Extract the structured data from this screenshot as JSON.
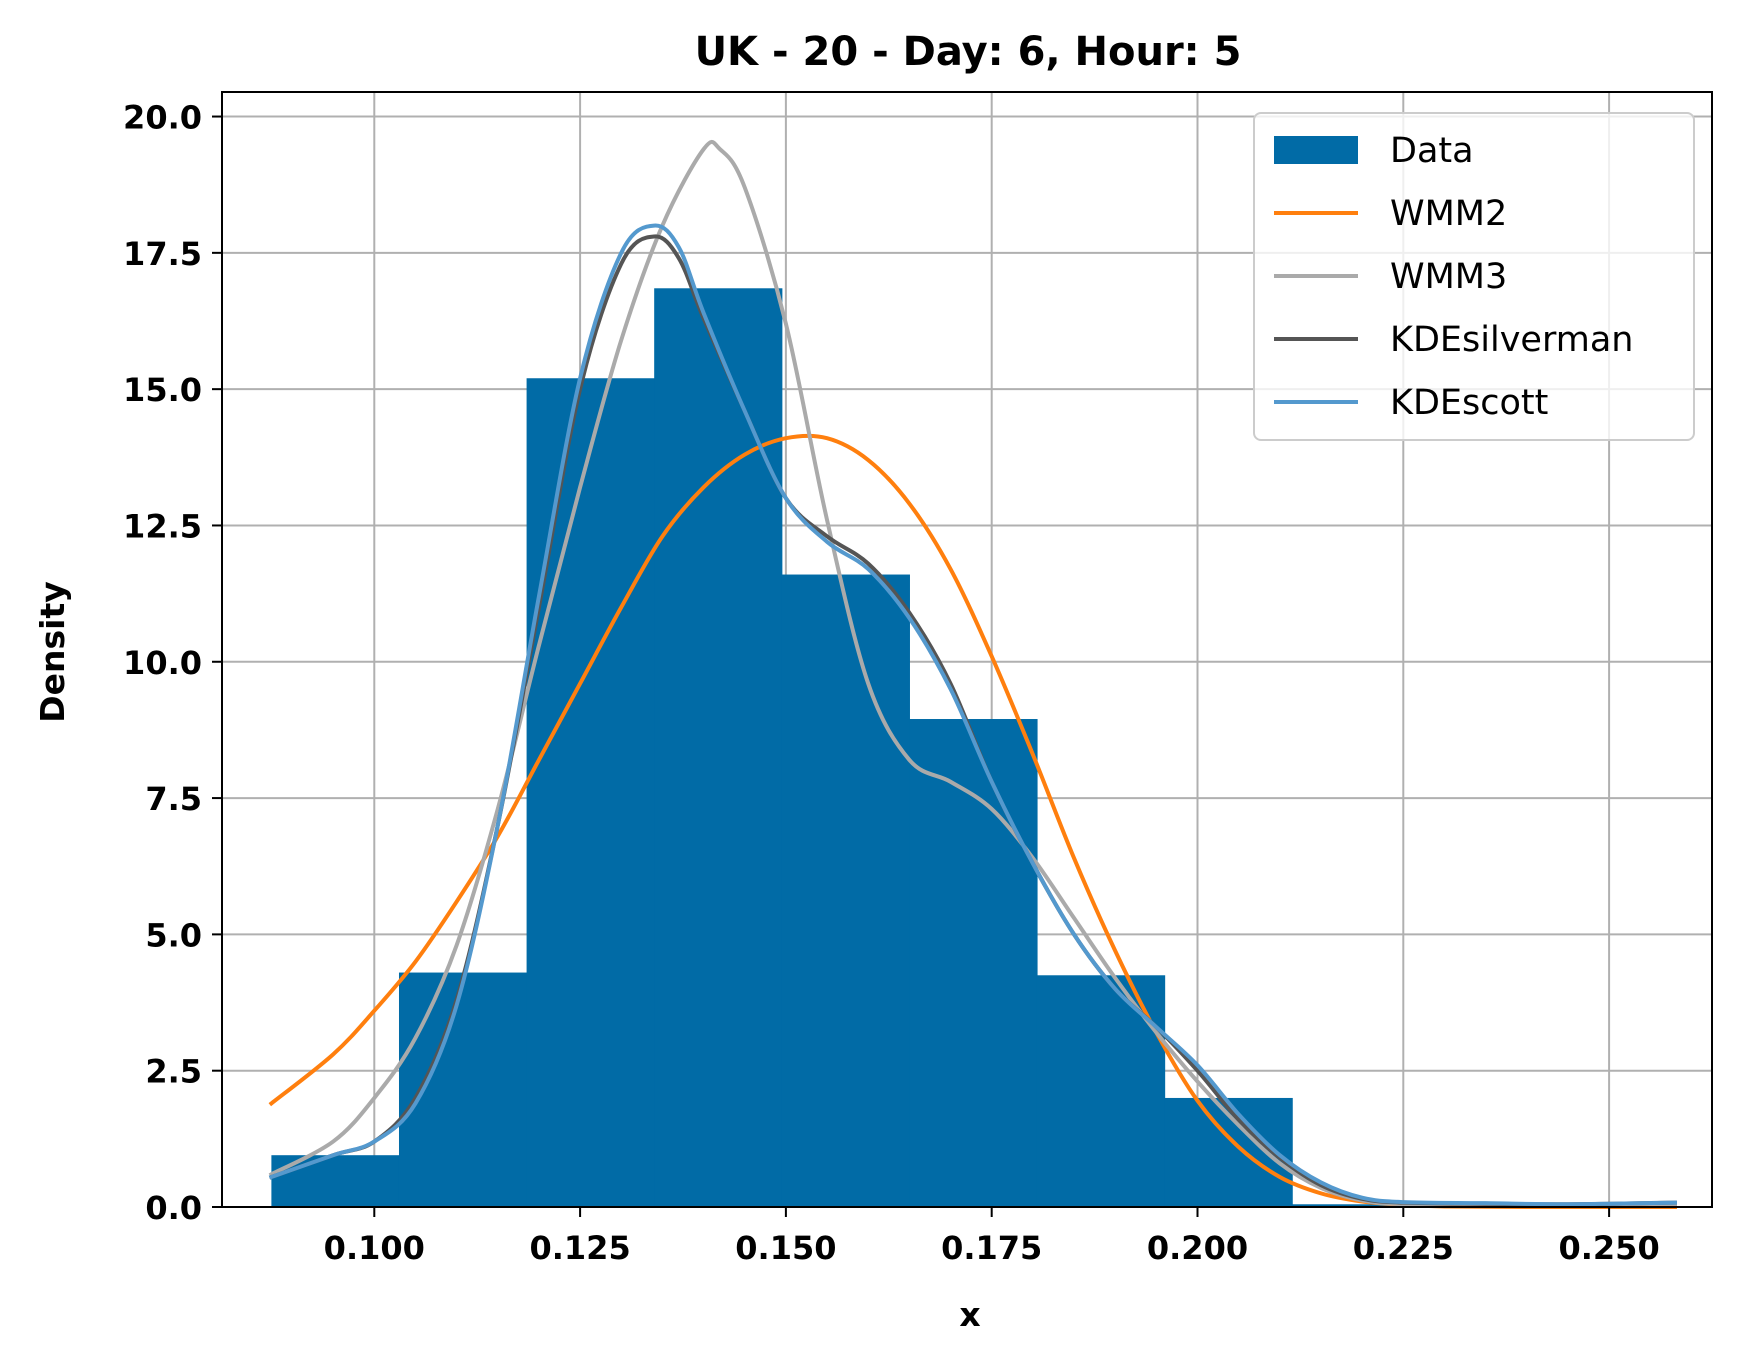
{
  "chart_data": {
    "type": "bar",
    "title": "UK - 20 - Day: 6, Hour: 5",
    "xlabel": "x",
    "ylabel": "Density",
    "xlim": [
      0.0815,
      0.2625
    ],
    "ylim": [
      0,
      20.45
    ],
    "xticks": [
      0.1,
      0.125,
      0.15,
      0.175,
      0.2,
      0.225,
      0.25
    ],
    "xtick_labels": [
      "0.100",
      "0.125",
      "0.150",
      "0.175",
      "0.200",
      "0.225",
      "0.250"
    ],
    "yticks": [
      0,
      2.5,
      5,
      7.5,
      10,
      12.5,
      15,
      17.5,
      20
    ],
    "ytick_labels": [
      "0.0",
      "2.5",
      "5.0",
      "7.5",
      "10.0",
      "12.5",
      "15.0",
      "17.5",
      "20.0"
    ],
    "grid": true,
    "legend_position": "top-right",
    "histogram": {
      "name": "Data",
      "color": "#016ba6",
      "bins": [
        {
          "x0": 0.0875,
          "x1": 0.103,
          "value": 0.95
        },
        {
          "x0": 0.103,
          "x1": 0.1185,
          "value": 4.3
        },
        {
          "x0": 0.1185,
          "x1": 0.134,
          "value": 15.2
        },
        {
          "x0": 0.134,
          "x1": 0.1495,
          "value": 16.85
        },
        {
          "x0": 0.1495,
          "x1": 0.165,
          "value": 11.6
        },
        {
          "x0": 0.165,
          "x1": 0.1805,
          "value": 8.95
        },
        {
          "x0": 0.1805,
          "x1": 0.196,
          "value": 4.25
        },
        {
          "x0": 0.196,
          "x1": 0.2115,
          "value": 2.0
        },
        {
          "x0": 0.2115,
          "x1": 0.258,
          "value": 0.05
        }
      ]
    },
    "series": [
      {
        "name": "WMM2",
        "color": "#ff7f0e",
        "points": [
          [
            0.0875,
            1.9
          ],
          [
            0.095,
            2.8
          ],
          [
            0.1,
            3.6
          ],
          [
            0.105,
            4.5
          ],
          [
            0.11,
            5.6
          ],
          [
            0.115,
            6.8
          ],
          [
            0.12,
            8.2
          ],
          [
            0.125,
            9.6
          ],
          [
            0.13,
            11.0
          ],
          [
            0.135,
            12.3
          ],
          [
            0.14,
            13.2
          ],
          [
            0.145,
            13.8
          ],
          [
            0.15,
            14.1
          ],
          [
            0.155,
            14.1
          ],
          [
            0.16,
            13.7
          ],
          [
            0.165,
            12.9
          ],
          [
            0.17,
            11.7
          ],
          [
            0.175,
            10.1
          ],
          [
            0.18,
            8.3
          ],
          [
            0.185,
            6.4
          ],
          [
            0.19,
            4.7
          ],
          [
            0.195,
            3.2
          ],
          [
            0.2,
            1.95
          ],
          [
            0.205,
            1.1
          ],
          [
            0.21,
            0.55
          ],
          [
            0.215,
            0.25
          ],
          [
            0.22,
            0.1
          ],
          [
            0.225,
            0.04
          ],
          [
            0.23,
            0.01
          ],
          [
            0.24,
            0.0
          ],
          [
            0.258,
            0.0
          ]
        ]
      },
      {
        "name": "WMM3",
        "color": "#aaaaaa",
        "points": [
          [
            0.0875,
            0.6
          ],
          [
            0.095,
            1.2
          ],
          [
            0.1,
            2.0
          ],
          [
            0.105,
            3.1
          ],
          [
            0.11,
            4.8
          ],
          [
            0.115,
            7.3
          ],
          [
            0.12,
            10.3
          ],
          [
            0.125,
            13.2
          ],
          [
            0.13,
            15.9
          ],
          [
            0.135,
            18.0
          ],
          [
            0.14,
            19.4
          ],
          [
            0.142,
            19.4
          ],
          [
            0.145,
            18.7
          ],
          [
            0.15,
            16.2
          ],
          [
            0.155,
            12.6
          ],
          [
            0.16,
            9.6
          ],
          [
            0.165,
            8.2
          ],
          [
            0.17,
            7.8
          ],
          [
            0.175,
            7.3
          ],
          [
            0.18,
            6.4
          ],
          [
            0.185,
            5.3
          ],
          [
            0.19,
            4.2
          ],
          [
            0.195,
            3.2
          ],
          [
            0.2,
            2.3
          ],
          [
            0.205,
            1.5
          ],
          [
            0.21,
            0.8
          ],
          [
            0.215,
            0.35
          ],
          [
            0.22,
            0.12
          ],
          [
            0.225,
            0.05
          ],
          [
            0.235,
            0.02
          ],
          [
            0.258,
            0.02
          ]
        ]
      },
      {
        "name": "KDEsilverman",
        "color": "#555555",
        "points": [
          [
            0.0875,
            0.55
          ],
          [
            0.095,
            0.95
          ],
          [
            0.1,
            1.2
          ],
          [
            0.105,
            2.0
          ],
          [
            0.11,
            3.8
          ],
          [
            0.115,
            7.0
          ],
          [
            0.12,
            11.0
          ],
          [
            0.125,
            15.0
          ],
          [
            0.13,
            17.3
          ],
          [
            0.134,
            17.8
          ],
          [
            0.137,
            17.4
          ],
          [
            0.14,
            16.3
          ],
          [
            0.145,
            14.6
          ],
          [
            0.15,
            13.0
          ],
          [
            0.155,
            12.3
          ],
          [
            0.16,
            11.8
          ],
          [
            0.165,
            10.9
          ],
          [
            0.17,
            9.6
          ],
          [
            0.175,
            7.8
          ],
          [
            0.18,
            6.3
          ],
          [
            0.185,
            5.0
          ],
          [
            0.19,
            4.0
          ],
          [
            0.195,
            3.3
          ],
          [
            0.2,
            2.5
          ],
          [
            0.205,
            1.6
          ],
          [
            0.21,
            0.9
          ],
          [
            0.215,
            0.4
          ],
          [
            0.22,
            0.15
          ],
          [
            0.225,
            0.08
          ],
          [
            0.235,
            0.06
          ],
          [
            0.245,
            0.05
          ],
          [
            0.258,
            0.08
          ]
        ]
      },
      {
        "name": "KDEscott",
        "color": "#5499ce",
        "points": [
          [
            0.0875,
            0.55
          ],
          [
            0.095,
            0.95
          ],
          [
            0.1,
            1.2
          ],
          [
            0.105,
            1.9
          ],
          [
            0.11,
            3.7
          ],
          [
            0.115,
            7.0
          ],
          [
            0.12,
            11.2
          ],
          [
            0.125,
            15.2
          ],
          [
            0.13,
            17.5
          ],
          [
            0.134,
            18.0
          ],
          [
            0.137,
            17.6
          ],
          [
            0.14,
            16.4
          ],
          [
            0.145,
            14.6
          ],
          [
            0.15,
            13.0
          ],
          [
            0.155,
            12.2
          ],
          [
            0.16,
            11.7
          ],
          [
            0.165,
            10.8
          ],
          [
            0.17,
            9.5
          ],
          [
            0.175,
            7.8
          ],
          [
            0.18,
            6.3
          ],
          [
            0.185,
            5.0
          ],
          [
            0.19,
            4.0
          ],
          [
            0.195,
            3.3
          ],
          [
            0.2,
            2.6
          ],
          [
            0.205,
            1.7
          ],
          [
            0.21,
            0.95
          ],
          [
            0.215,
            0.45
          ],
          [
            0.22,
            0.17
          ],
          [
            0.225,
            0.09
          ],
          [
            0.235,
            0.07
          ],
          [
            0.245,
            0.05
          ],
          [
            0.258,
            0.08
          ]
        ]
      }
    ]
  }
}
